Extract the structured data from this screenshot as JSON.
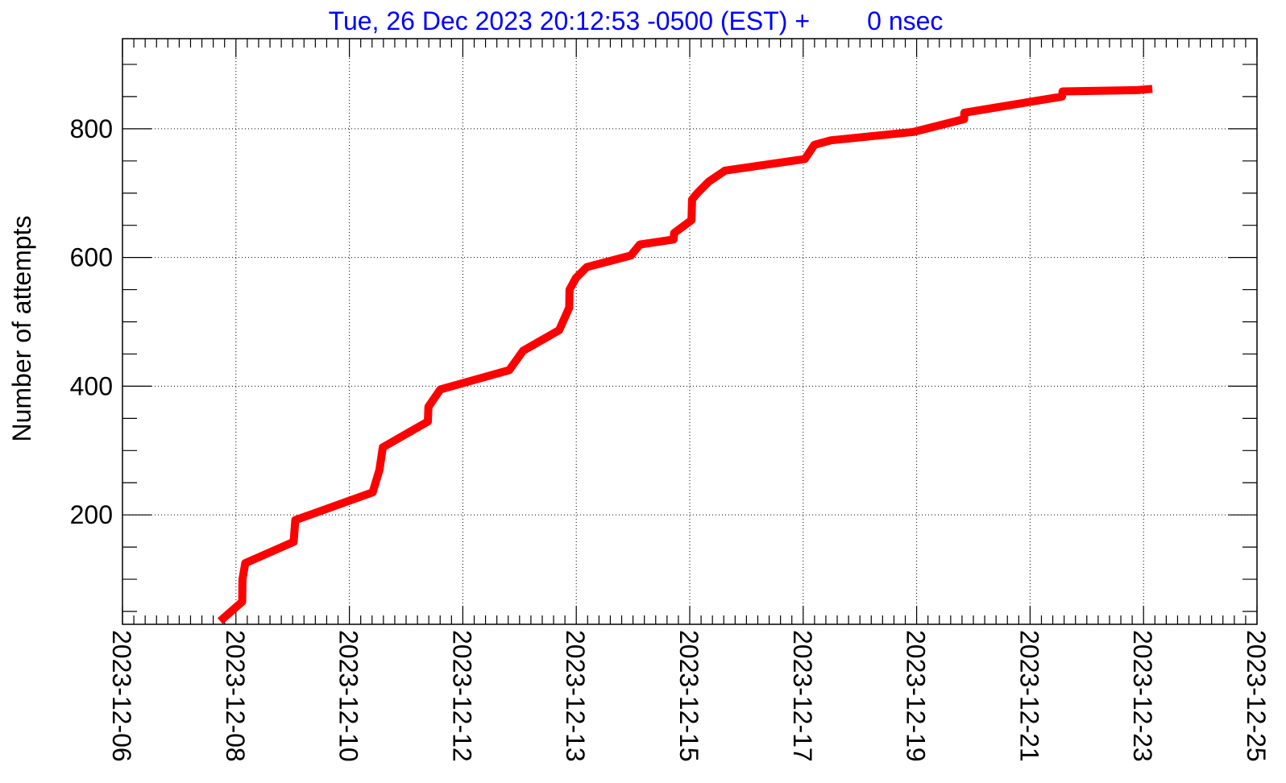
{
  "chart_data": {
    "type": "line",
    "title": "Tue, 26 Dec 2023 20:12:53 -0500 (EST) +        0 nsec",
    "xlabel": "",
    "ylabel": "Number of attempts",
    "ylim": [
      30,
      940
    ],
    "y_ticks": [
      200,
      400,
      600,
      800
    ],
    "x_axis_dates": [
      "2023-12-06",
      "2023-12-25"
    ],
    "x_tick_labels": [
      "2023-12-06",
      "2023-12-08",
      "2023-12-10",
      "2023-12-12",
      "2023-12-13",
      "2023-12-15",
      "2023-12-17",
      "2023-12-19",
      "2023-12-21",
      "2023-12-23",
      "2023-12-25"
    ],
    "grid": true,
    "series": [
      {
        "color": "#ff0000",
        "points": [
          [
            "2023-12-07 15:16",
            35
          ],
          [
            "2023-12-08 00:07",
            65
          ],
          [
            "2023-12-08 00:14",
            100
          ],
          [
            "2023-12-08 01:21",
            125
          ],
          [
            "2023-12-08 20:48",
            158
          ],
          [
            "2023-12-08 21:28",
            192
          ],
          [
            "2023-12-10 04:34",
            235
          ],
          [
            "2023-12-10 07:17",
            270
          ],
          [
            "2023-12-10 08:38",
            305
          ],
          [
            "2023-12-11 02:44",
            345
          ],
          [
            "2023-12-11 02:58",
            368
          ],
          [
            "2023-12-11 07:46",
            395
          ],
          [
            "2023-12-12 11:30",
            425
          ],
          [
            "2023-12-12 16:59",
            455
          ],
          [
            "2023-12-13 07:31",
            487
          ],
          [
            "2023-12-13 11:33",
            522
          ],
          [
            "2023-12-13 11:40",
            550
          ],
          [
            "2023-12-13 14:14",
            568
          ],
          [
            "2023-12-13 18:36",
            585
          ],
          [
            "2023-12-14 12:20",
            603
          ],
          [
            "2023-12-14 15:57",
            620
          ],
          [
            "2023-12-15 05:29",
            628
          ],
          [
            "2023-12-15 05:44",
            638
          ],
          [
            "2023-12-15 12:42",
            658
          ],
          [
            "2023-12-15 12:56",
            690
          ],
          [
            "2023-12-15 15:05",
            700
          ],
          [
            "2023-12-15 19:41",
            718
          ],
          [
            "2023-12-16 02:12",
            735
          ],
          [
            "2023-12-17 10:17",
            753
          ],
          [
            "2023-12-17 14:06",
            775
          ],
          [
            "2023-12-17 20:46",
            782
          ],
          [
            "2023-12-19 05:54",
            795
          ],
          [
            "2023-12-20 02:16",
            815
          ],
          [
            "2023-12-20 02:23",
            825
          ],
          [
            "2023-12-21 17:38",
            850
          ],
          [
            "2023-12-21 17:52",
            858
          ],
          [
            "2023-12-22 23:47",
            860
          ],
          [
            "2023-12-23 05:55",
            862
          ]
        ]
      }
    ]
  }
}
